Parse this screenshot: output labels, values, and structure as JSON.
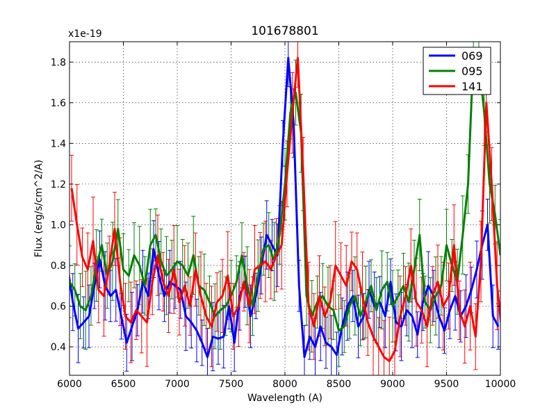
{
  "chart_data": {
    "type": "line",
    "title": "101678801",
    "xlabel": "Wavelength (A)",
    "ylabel": "Flux (erg/s/cm^2/A)",
    "y_multiplier": "x1e-19",
    "xlim": [
      6000,
      10000
    ],
    "ylim": [
      0.26,
      1.9
    ],
    "grid": true,
    "legend_position": "top-right",
    "x_ticks": [
      6000,
      6500,
      7000,
      7500,
      8000,
      8500,
      9000,
      9500,
      10000
    ],
    "x_tick_labels": [
      "6000",
      "6500",
      "7000",
      "7500",
      "8000",
      "8500",
      "9000",
      "9500",
      "10000"
    ],
    "y_ticks": [
      0.4,
      0.6,
      0.8,
      1.0,
      1.2,
      1.4,
      1.6,
      1.8
    ],
    "y_tick_labels": [
      "0.4",
      "0.6",
      "0.8",
      "1.0",
      "1.2",
      "1.4",
      "1.6",
      "1.8"
    ],
    "colors": {
      "069": "#0000ff",
      "095": "#008000",
      "141": "#ff0000"
    },
    "series": [
      {
        "name": "069",
        "color": "#0000ff",
        "x": [
          6000,
          6050,
          6100,
          6150,
          6200,
          6250,
          6300,
          6350,
          6400,
          6450,
          6500,
          6550,
          6600,
          6650,
          6700,
          6750,
          6800,
          6850,
          6900,
          6950,
          7000,
          7050,
          7100,
          7150,
          7200,
          7250,
          7300,
          7350,
          7400,
          7450,
          7500,
          7550,
          7600,
          7650,
          7700,
          7750,
          7800,
          7850,
          7900,
          7950,
          8000,
          8050,
          8100,
          8150,
          8200,
          8250,
          8300,
          8350,
          8400,
          8450,
          8500,
          8550,
          8600,
          8650,
          8700,
          8750,
          8800,
          8850,
          8900,
          8950,
          9000,
          9050,
          9100,
          9150,
          9200,
          9250,
          9300,
          9350,
          9400,
          9450,
          9500,
          9550,
          9600,
          9650,
          9700,
          9750,
          9800,
          9850,
          9900,
          9950,
          10000
        ],
        "y": [
          0.8,
          0.62,
          0.49,
          0.52,
          0.55,
          0.7,
          0.83,
          0.7,
          0.65,
          0.68,
          0.55,
          0.42,
          0.5,
          0.58,
          0.72,
          0.65,
          0.88,
          0.75,
          0.65,
          0.72,
          0.7,
          0.68,
          0.55,
          0.52,
          0.48,
          0.42,
          0.35,
          0.45,
          0.44,
          0.45,
          0.6,
          0.42,
          0.65,
          0.72,
          0.55,
          0.65,
          0.8,
          0.95,
          0.9,
          0.85,
          1.4,
          1.82,
          1.5,
          0.7,
          0.35,
          0.45,
          0.4,
          0.5,
          0.42,
          0.4,
          0.36,
          0.5,
          0.6,
          0.65,
          0.5,
          0.55,
          0.68,
          0.6,
          0.62,
          0.55,
          0.72,
          0.52,
          0.5,
          0.58,
          0.55,
          0.46,
          0.62,
          0.7,
          0.65,
          0.55,
          0.48,
          0.58,
          0.65,
          0.55,
          0.6,
          0.68,
          0.78,
          0.9,
          1.0,
          0.55,
          0.5
        ],
        "err": 0.14
      },
      {
        "name": "095",
        "color": "#008000",
        "x": [
          6000,
          6050,
          6100,
          6150,
          6200,
          6250,
          6300,
          6350,
          6400,
          6450,
          6500,
          6550,
          6600,
          6650,
          6700,
          6750,
          6800,
          6850,
          6900,
          6950,
          7000,
          7050,
          7100,
          7150,
          7200,
          7250,
          7300,
          7350,
          7400,
          7450,
          7500,
          7550,
          7600,
          7650,
          7700,
          7750,
          7800,
          7850,
          7900,
          7950,
          8000,
          8050,
          8100,
          8150,
          8200,
          8250,
          8300,
          8350,
          8400,
          8450,
          8500,
          8550,
          8600,
          8650,
          8700,
          8750,
          8800,
          8850,
          8900,
          8950,
          9000,
          9050,
          9100,
          9150,
          9200,
          9250,
          9300,
          9350,
          9400,
          9450,
          9500,
          9550,
          9600,
          9650,
          9700,
          9750,
          9800,
          9850,
          9900,
          9950,
          10000
        ],
        "y": [
          0.72,
          0.68,
          0.6,
          0.58,
          0.65,
          0.8,
          0.9,
          0.75,
          0.82,
          0.98,
          0.78,
          0.75,
          0.85,
          0.8,
          0.7,
          0.9,
          0.95,
          0.82,
          0.75,
          0.78,
          0.82,
          0.8,
          0.75,
          0.85,
          0.7,
          0.68,
          0.62,
          0.55,
          0.58,
          0.6,
          0.65,
          0.72,
          0.85,
          0.7,
          0.6,
          0.75,
          0.88,
          0.9,
          0.82,
          0.95,
          1.2,
          1.55,
          1.65,
          1.45,
          0.65,
          0.55,
          0.62,
          0.65,
          0.6,
          0.58,
          0.48,
          0.5,
          0.6,
          0.65,
          0.55,
          0.62,
          0.7,
          0.58,
          0.68,
          0.72,
          0.6,
          0.65,
          0.7,
          0.62,
          0.78,
          0.95,
          0.62,
          0.58,
          0.65,
          0.7,
          0.9,
          0.8,
          0.72,
          0.95,
          1.2,
          1.85,
          1.8,
          1.55,
          1.2,
          1.05,
          0.85
        ],
        "err": 0.16
      },
      {
        "name": "141",
        "color": "#ff0000",
        "x": [
          6000,
          6050,
          6100,
          6150,
          6200,
          6250,
          6300,
          6350,
          6400,
          6450,
          6500,
          6550,
          6600,
          6650,
          6700,
          6750,
          6800,
          6850,
          6900,
          6950,
          7000,
          7050,
          7100,
          7150,
          7200,
          7250,
          7300,
          7350,
          7400,
          7450,
          7500,
          7550,
          7600,
          7650,
          7700,
          7750,
          7800,
          7850,
          7900,
          7950,
          8000,
          8050,
          8100,
          8150,
          8200,
          8250,
          8300,
          8350,
          8400,
          8450,
          8500,
          8550,
          8600,
          8650,
          8700,
          8750,
          8800,
          8850,
          8900,
          8950,
          9000,
          9050,
          9100,
          9150,
          9200,
          9250,
          9300,
          9350,
          9400,
          9450,
          9500,
          9550,
          9600,
          9650,
          9700,
          9750,
          9800,
          9850,
          9900,
          9950,
          10000
        ],
        "y": [
          1.18,
          1.0,
          0.84,
          0.78,
          0.92,
          0.68,
          0.65,
          0.8,
          0.98,
          0.72,
          0.55,
          0.52,
          0.58,
          0.55,
          0.52,
          0.72,
          0.85,
          0.72,
          0.65,
          0.78,
          0.62,
          0.7,
          0.6,
          0.78,
          0.65,
          0.55,
          0.5,
          0.62,
          0.65,
          0.75,
          0.55,
          0.6,
          0.72,
          0.6,
          0.78,
          0.8,
          0.82,
          0.78,
          0.85,
          0.9,
          1.25,
          1.55,
          1.82,
          1.25,
          0.6,
          0.5,
          0.65,
          0.55,
          0.62,
          0.8,
          0.75,
          0.7,
          0.82,
          0.78,
          0.65,
          0.52,
          0.45,
          0.4,
          0.35,
          0.33,
          0.38,
          0.55,
          0.65,
          0.8,
          0.62,
          0.58,
          0.5,
          0.65,
          0.72,
          0.6,
          0.65,
          0.9,
          0.58,
          0.5,
          0.6,
          0.45,
          0.82,
          1.6,
          1.2,
          0.7,
          0.45
        ],
        "err": 0.18
      }
    ]
  }
}
